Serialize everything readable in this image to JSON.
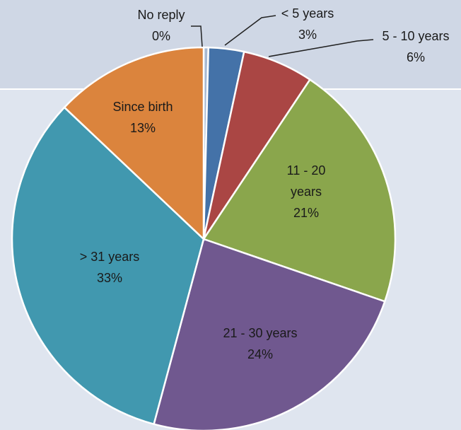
{
  "chart_data": {
    "type": "pie",
    "categories": [
      "No reply",
      "< 5 years",
      "5 - 10 years",
      "11 - 20 years",
      "21 - 30 years",
      "> 31 years",
      "Since birth"
    ],
    "values": [
      0.4,
      3,
      6,
      21,
      24,
      33,
      13
    ],
    "value_labels": [
      "0%",
      "3%",
      "6%",
      "21%",
      "24%",
      "33%",
      "13%"
    ],
    "colors": [
      "#a7b9d2",
      "#4472a8",
      "#aa4644",
      "#8aa64c",
      "#70588f",
      "#4198af",
      "#db843d"
    ]
  }
}
